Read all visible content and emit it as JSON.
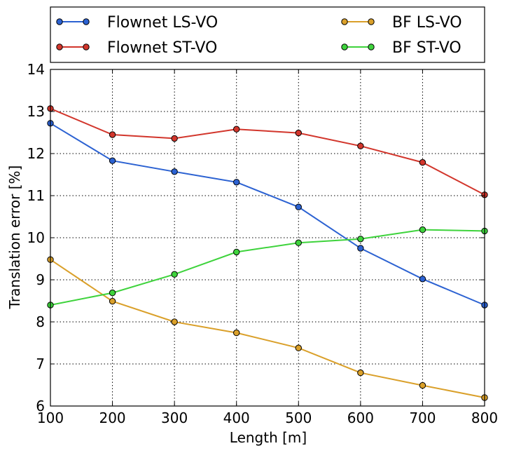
{
  "chart_data": {
    "type": "line",
    "title": "",
    "xlabel": "Length [m]",
    "ylabel": "Translation error [%]",
    "x": [
      100,
      200,
      300,
      400,
      500,
      600,
      700,
      800
    ],
    "xlim": [
      100,
      800
    ],
    "ylim": [
      6,
      14
    ],
    "xticks": [
      "100",
      "200",
      "300",
      "400",
      "500",
      "600",
      "700",
      "800"
    ],
    "yticks": [
      "6",
      "7",
      "8",
      "9",
      "10",
      "11",
      "12",
      "13",
      "14"
    ],
    "grid": true,
    "legend_position": "top",
    "series": [
      {
        "name": "Flownet LS-VO",
        "color": "#2c62d2",
        "values": [
          12.72,
          11.83,
          11.57,
          11.32,
          10.73,
          9.75,
          9.02,
          8.4
        ]
      },
      {
        "name": "Flownet ST-VO",
        "color": "#d2362c",
        "values": [
          13.07,
          12.45,
          12.36,
          12.58,
          12.49,
          12.18,
          11.79,
          11.02
        ]
      },
      {
        "name": "BF LS-VO",
        "color": "#daa02a",
        "values": [
          9.48,
          8.49,
          8.0,
          7.74,
          7.38,
          6.79,
          6.49,
          6.2
        ]
      },
      {
        "name": "BF ST-VO",
        "color": "#3ed33c",
        "values": [
          8.4,
          8.69,
          9.13,
          9.66,
          9.88,
          9.97,
          10.19,
          10.16
        ]
      }
    ]
  }
}
